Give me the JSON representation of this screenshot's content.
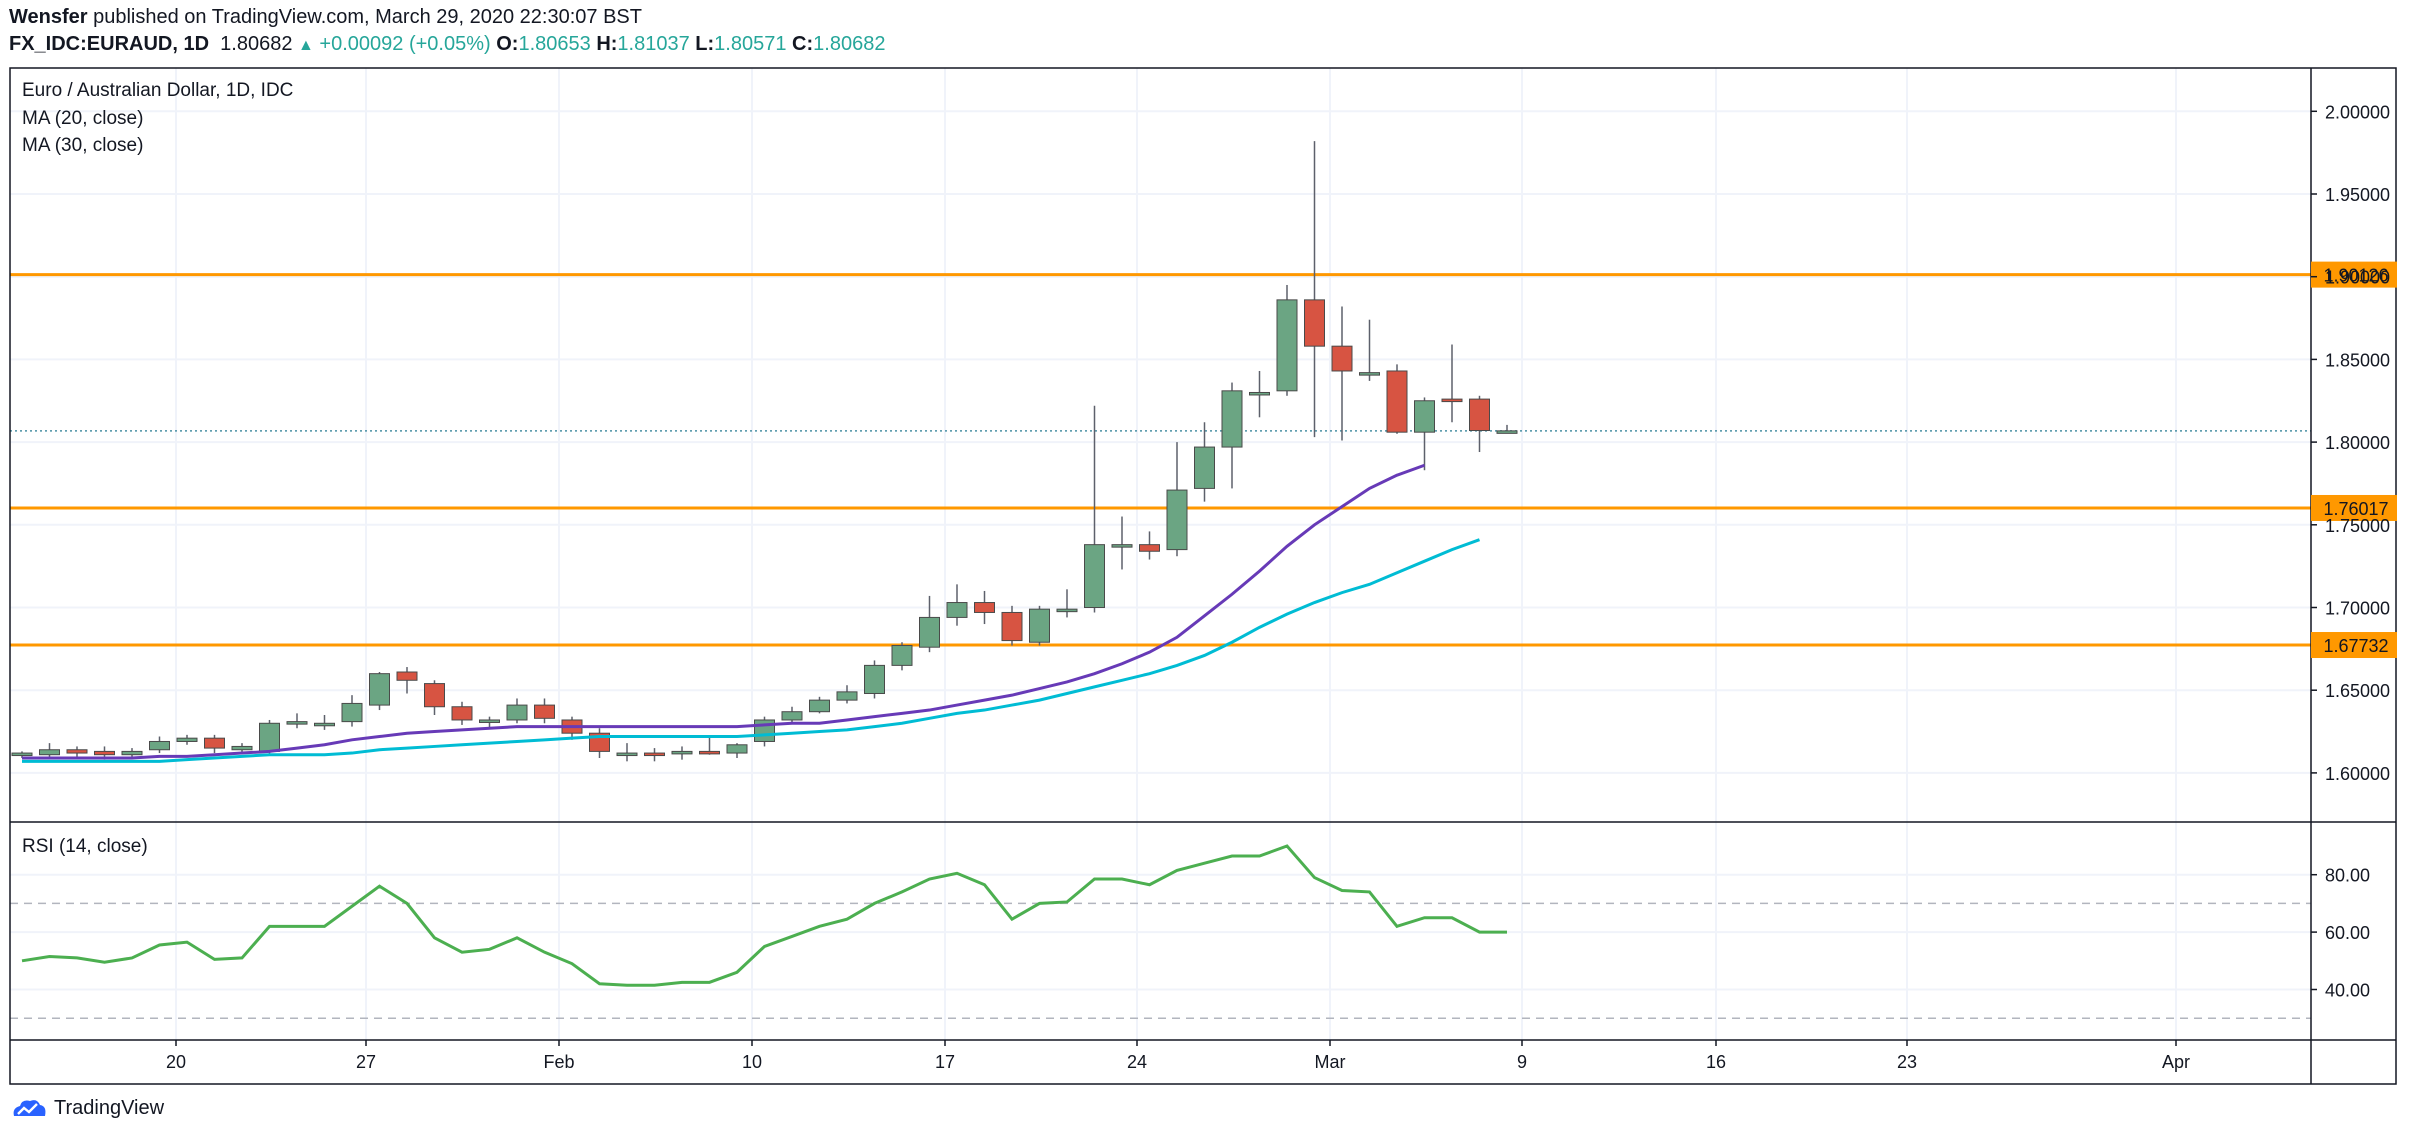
{
  "header": {
    "author": "Wensfer",
    "published_text": "published on TradingView.com, March 29, 2020 22:30:07 BST",
    "symbol": "FX_IDC:EURAUD, 1D",
    "last": "1.80682",
    "change": "+0.00092 (+0.05%)",
    "o_label": "O:",
    "o_val": "1.80653",
    "h_label": "H:",
    "h_val": "1.81037",
    "l_label": "L:",
    "l_val": "1.80571",
    "c_label": "C:",
    "c_val": "1.80682"
  },
  "legend": {
    "title": "Euro / Australian Dollar, 1D, IDC",
    "ma20": "MA (20, close)",
    "ma30": "MA (30, close)",
    "rsi": "RSI (14, close)"
  },
  "footer": {
    "brand": "TradingView"
  },
  "colors": {
    "up": "#6ba583",
    "down": "#d75442",
    "ma20": "#673ab7",
    "ma30": "#00bcd4",
    "rsi": "#4caf50",
    "hline": "#ff9800"
  },
  "chart_data": [
    {
      "type": "candlestick",
      "title": "Euro / Australian Dollar, 1D, IDC",
      "x_ticks": [
        "20",
        "27",
        "Feb",
        "10",
        "17",
        "24",
        "Mar",
        "9",
        "16",
        "23",
        "Apr"
      ],
      "y_ticks": [
        "2.00000",
        "1.95000",
        "1.90000",
        "1.85000",
        "1.80000",
        "1.75000",
        "1.70000",
        "1.65000",
        "1.60000"
      ],
      "ylim": [
        1.575,
        2.03
      ],
      "last_price": 1.80682,
      "horizontal_levels": [
        {
          "value": 1.90126,
          "label": "1.90126"
        },
        {
          "value": 1.76017,
          "label": "1.76017"
        },
        {
          "value": 1.67732,
          "label": "1.67732"
        }
      ],
      "ohlc": [
        [
          1.611,
          1.613,
          1.609,
          1.612
        ],
        [
          1.611,
          1.618,
          1.609,
          1.614
        ],
        [
          1.614,
          1.616,
          1.609,
          1.612
        ],
        [
          1.613,
          1.616,
          1.608,
          1.611
        ],
        [
          1.611,
          1.615,
          1.609,
          1.613
        ],
        [
          1.614,
          1.622,
          1.612,
          1.619
        ],
        [
          1.619,
          1.623,
          1.617,
          1.621
        ],
        [
          1.621,
          1.623,
          1.612,
          1.615
        ],
        [
          1.614,
          1.618,
          1.612,
          1.616
        ],
        [
          1.613,
          1.632,
          1.611,
          1.63
        ],
        [
          1.63,
          1.636,
          1.627,
          1.631
        ],
        [
          1.63,
          1.635,
          1.626,
          1.63
        ],
        [
          1.631,
          1.647,
          1.628,
          1.642
        ],
        [
          1.641,
          1.661,
          1.638,
          1.66
        ],
        [
          1.661,
          1.664,
          1.648,
          1.656
        ],
        [
          1.654,
          1.656,
          1.635,
          1.64
        ],
        [
          1.64,
          1.643,
          1.629,
          1.632
        ],
        [
          1.631,
          1.634,
          1.627,
          1.632
        ],
        [
          1.632,
          1.645,
          1.63,
          1.641
        ],
        [
          1.641,
          1.645,
          1.63,
          1.633
        ],
        [
          1.632,
          1.634,
          1.62,
          1.624
        ],
        [
          1.624,
          1.627,
          1.609,
          1.613
        ],
        [
          1.612,
          1.618,
          1.607,
          1.612
        ],
        [
          1.612,
          1.615,
          1.607,
          1.611
        ],
        [
          1.612,
          1.616,
          1.608,
          1.613
        ],
        [
          1.613,
          1.622,
          1.611,
          1.612
        ],
        [
          1.612,
          1.618,
          1.609,
          1.617
        ],
        [
          1.619,
          1.634,
          1.616,
          1.632
        ],
        [
          1.632,
          1.64,
          1.63,
          1.637
        ],
        [
          1.637,
          1.646,
          1.636,
          1.644
        ],
        [
          1.644,
          1.653,
          1.642,
          1.649
        ],
        [
          1.648,
          1.668,
          1.645,
          1.665
        ],
        [
          1.665,
          1.679,
          1.662,
          1.677
        ],
        [
          1.676,
          1.707,
          1.673,
          1.694
        ],
        [
          1.694,
          1.714,
          1.689,
          1.703
        ],
        [
          1.703,
          1.71,
          1.69,
          1.697
        ],
        [
          1.697,
          1.701,
          1.677,
          1.68
        ],
        [
          1.679,
          1.701,
          1.677,
          1.699
        ],
        [
          1.699,
          1.711,
          1.694,
          1.699
        ],
        [
          1.7,
          1.822,
          1.697,
          1.738
        ],
        [
          1.738,
          1.755,
          1.723,
          1.738
        ],
        [
          1.738,
          1.746,
          1.729,
          1.734
        ],
        [
          1.735,
          1.8,
          1.731,
          1.771
        ],
        [
          1.772,
          1.812,
          1.764,
          1.797
        ],
        [
          1.797,
          1.836,
          1.772,
          1.831
        ],
        [
          1.83,
          1.843,
          1.815,
          1.83
        ],
        [
          1.831,
          1.895,
          1.828,
          1.886
        ],
        [
          1.886,
          1.982,
          1.803,
          1.858
        ],
        [
          1.858,
          1.882,
          1.801,
          1.843
        ],
        [
          1.842,
          1.874,
          1.837,
          1.842
        ],
        [
          1.843,
          1.847,
          1.805,
          1.806
        ],
        [
          1.806,
          1.827,
          1.783,
          1.825
        ],
        [
          1.826,
          1.859,
          1.812,
          1.825
        ],
        [
          1.826,
          1.828,
          1.794,
          1.807
        ],
        [
          1.8065,
          1.8104,
          1.8057,
          1.8068
        ]
      ],
      "ma20": [
        1.609,
        1.609,
        1.609,
        1.609,
        1.609,
        1.61,
        1.61,
        1.611,
        1.612,
        1.613,
        1.615,
        1.617,
        1.62,
        1.622,
        1.624,
        1.625,
        1.626,
        1.627,
        1.628,
        1.628,
        1.628,
        1.628,
        1.628,
        1.628,
        1.628,
        1.628,
        1.628,
        1.629,
        1.63,
        1.63,
        1.632,
        1.634,
        1.636,
        1.638,
        1.641,
        1.644,
        1.647,
        1.651,
        1.655,
        1.66,
        1.666,
        1.673,
        1.682,
        1.695,
        1.708,
        1.722,
        1.737,
        1.75,
        1.761,
        1.772,
        1.78,
        1.786
      ],
      "ma30": [
        1.607,
        1.607,
        1.607,
        1.607,
        1.607,
        1.607,
        1.608,
        1.609,
        1.61,
        1.611,
        1.611,
        1.611,
        1.612,
        1.614,
        1.615,
        1.616,
        1.617,
        1.618,
        1.619,
        1.62,
        1.621,
        1.622,
        1.622,
        1.622,
        1.622,
        1.622,
        1.622,
        1.623,
        1.624,
        1.625,
        1.626,
        1.628,
        1.63,
        1.633,
        1.636,
        1.638,
        1.641,
        1.644,
        1.648,
        1.652,
        1.656,
        1.66,
        1.665,
        1.671,
        1.679,
        1.688,
        1.696,
        1.703,
        1.709,
        1.714,
        1.721,
        1.728,
        1.735,
        1.741
      ],
      "ma_start_index": 0
    },
    {
      "type": "line",
      "title": "RSI (14, close)",
      "y_ticks": [
        "80.00",
        "60.00",
        "40.00"
      ],
      "ylim": [
        28,
        92
      ],
      "bands": [
        70,
        30
      ],
      "values": [
        50,
        51.5,
        51,
        49.5,
        51,
        55.5,
        56.5,
        50.5,
        51,
        62,
        62,
        62,
        69,
        76,
        70,
        58,
        53,
        54,
        58,
        53,
        49,
        42,
        41.5,
        41.5,
        42.5,
        42.5,
        46,
        55,
        58.5,
        62,
        64.5,
        70,
        74,
        78.5,
        80.5,
        76.5,
        64.5,
        70,
        70.5,
        78.5,
        78.5,
        76.5,
        81.5,
        84,
        86.5,
        86.5,
        90,
        79,
        74.5,
        74,
        62,
        65,
        65,
        60,
        60
      ]
    }
  ]
}
